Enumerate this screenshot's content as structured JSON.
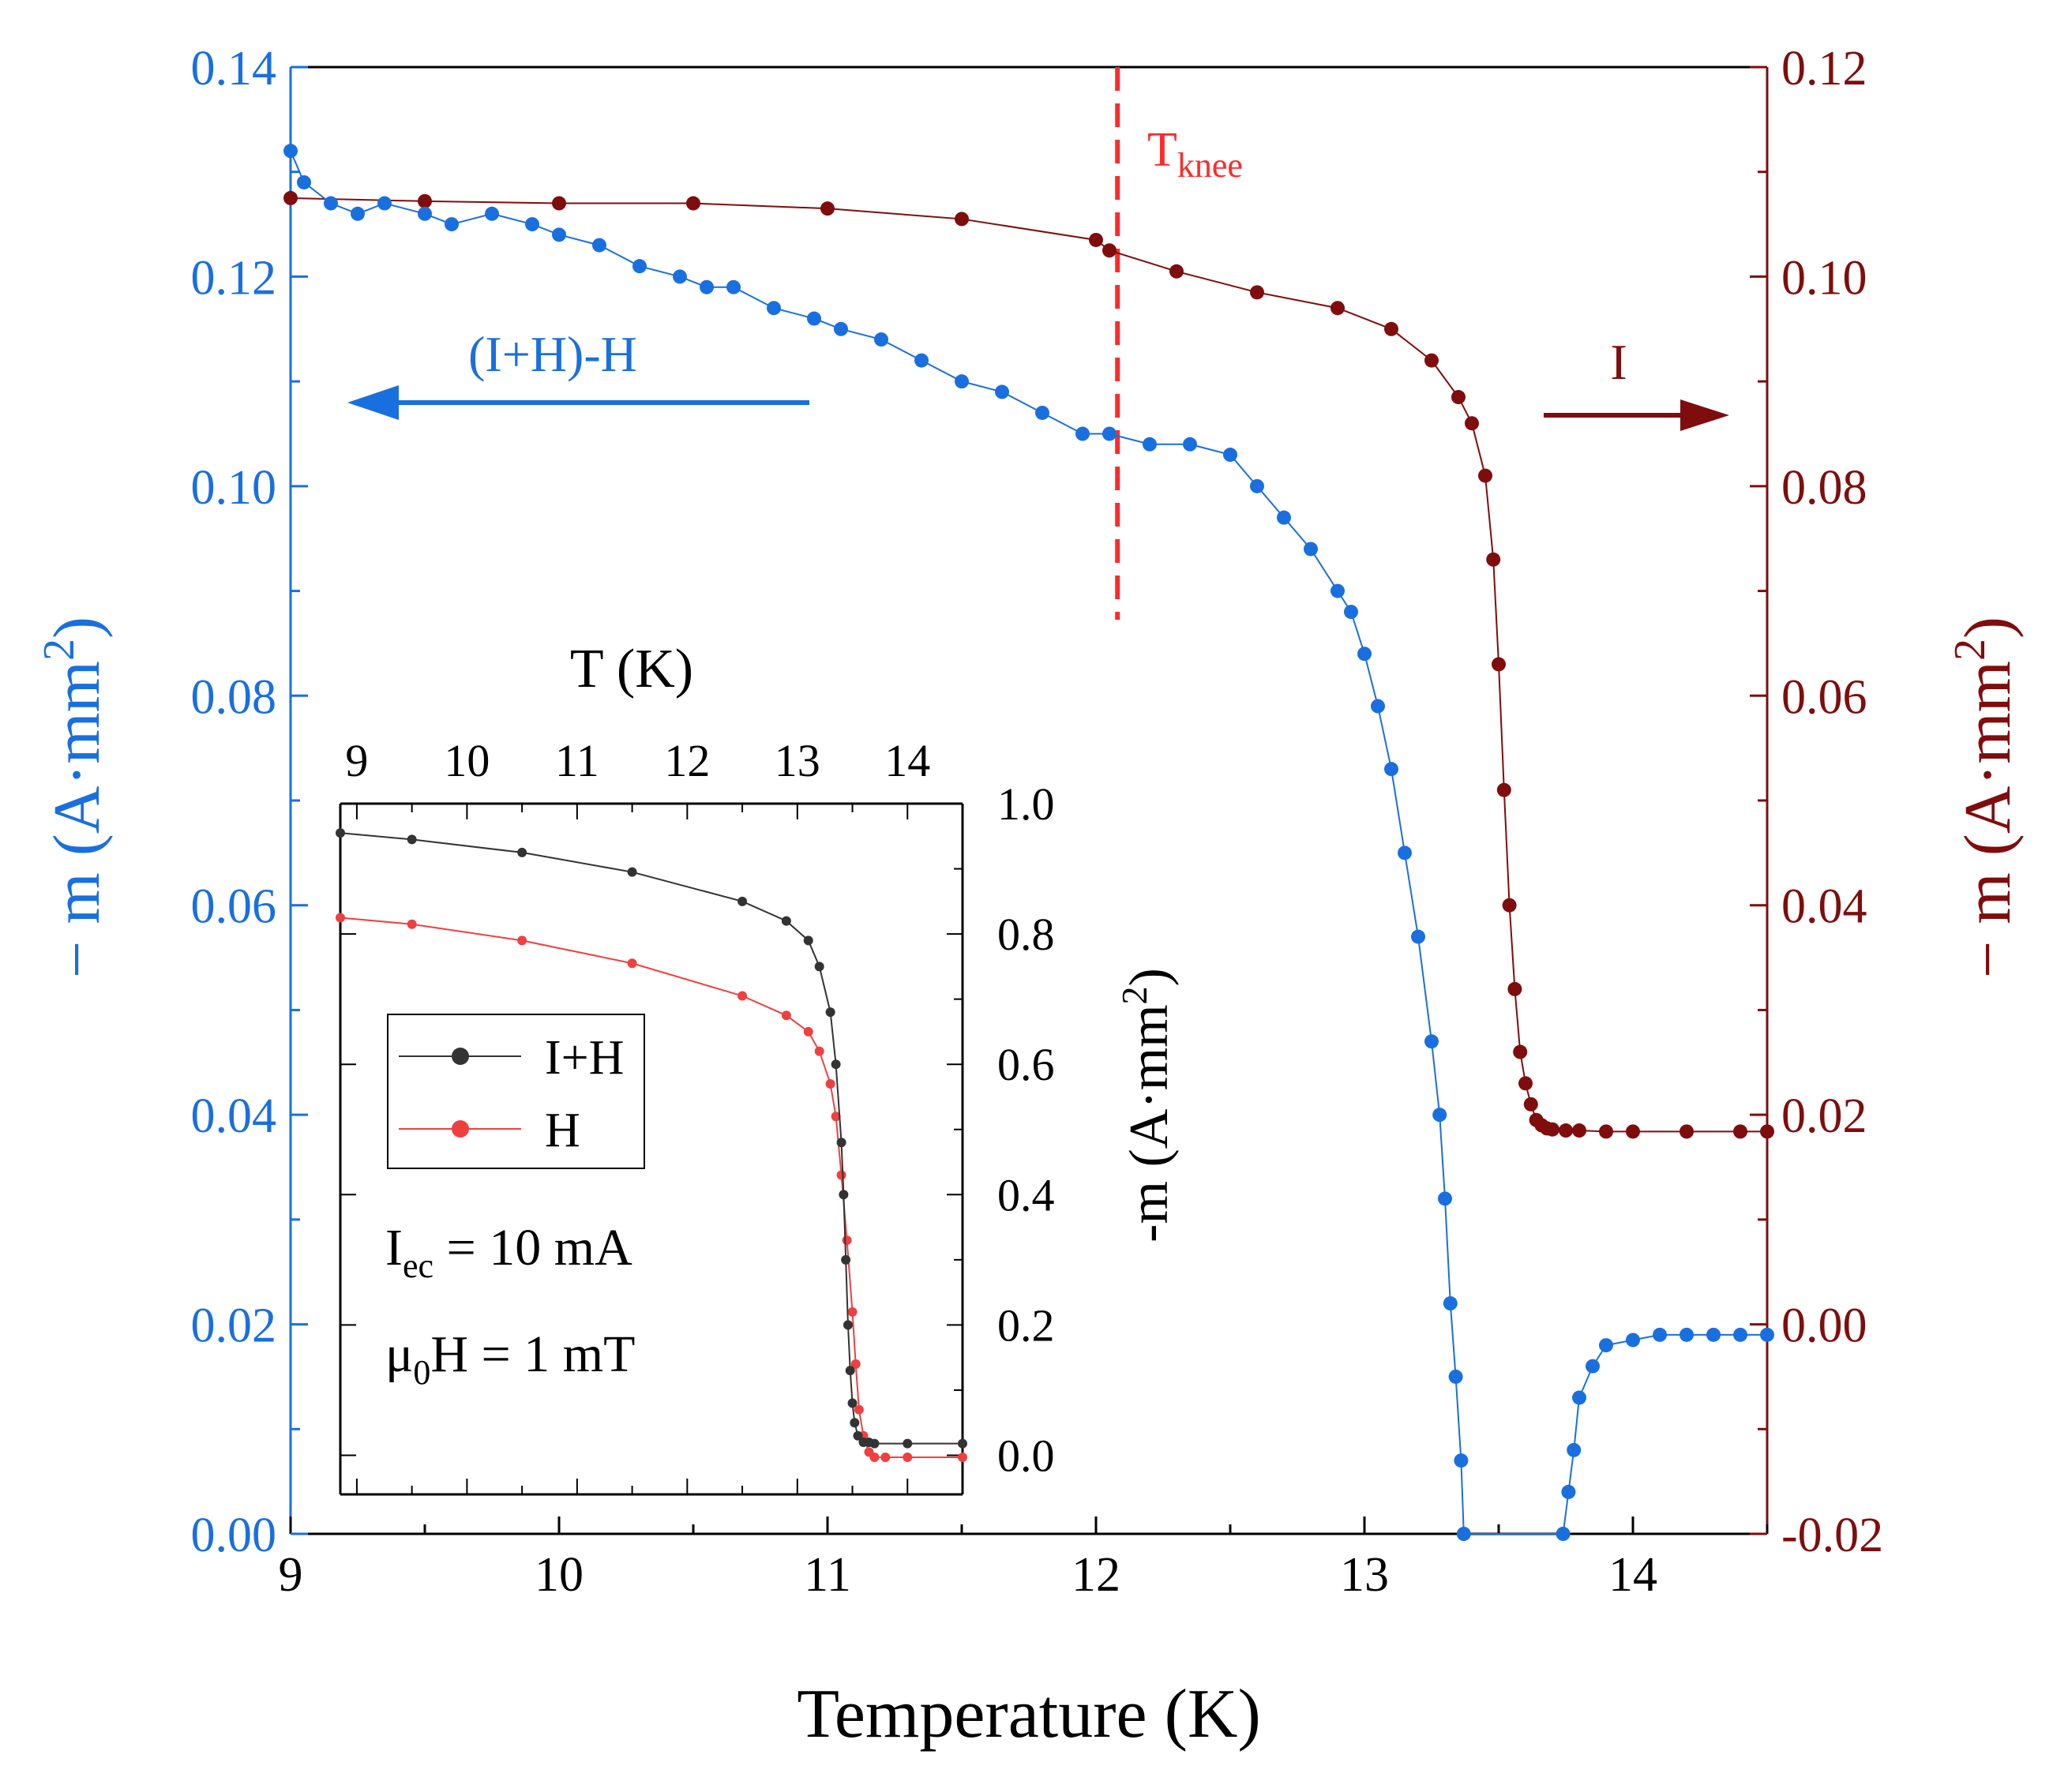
{
  "chart_data": [
    {
      "type": "scatter",
      "name": "main",
      "xlabel": "Temperature (K)",
      "xlim": [
        9,
        14.5
      ],
      "xticks": [
        9,
        10,
        11,
        12,
        13,
        14
      ],
      "ylabel_left": "− m (A·mm",
      "ylabel_left_sup": "2",
      "ylabel_left_close": ")",
      "ylim_left": [
        0,
        0.14
      ],
      "yticks_left": [
        "0.00",
        "0.02",
        "0.04",
        "0.06",
        "0.08",
        "0.10",
        "0.12",
        "0.14"
      ],
      "ylabel_right": "− m (A·mm",
      "ylabel_right_sup": "2",
      "ylabel_right_close": ")",
      "ylim_right": [
        -0.02,
        0.12
      ],
      "yticks_right": [
        "-0.02",
        "0.00",
        "0.02",
        "0.04",
        "0.06",
        "0.08",
        "0.10",
        "0.12"
      ],
      "series": [
        {
          "name": "(I+H)-H",
          "axis": "left",
          "color": "#1a6fdf",
          "x": [
            9.0,
            9.05,
            9.15,
            9.25,
            9.35,
            9.5,
            9.6,
            9.75,
            9.9,
            10.0,
            10.15,
            10.3,
            10.45,
            10.55,
            10.65,
            10.8,
            10.95,
            11.05,
            11.2,
            11.35,
            11.5,
            11.65,
            11.8,
            11.95,
            12.05,
            12.2,
            12.35,
            12.5,
            12.6,
            12.7,
            12.8,
            12.9,
            12.95,
            13.0,
            13.05,
            13.1,
            13.15,
            13.2,
            13.25,
            13.28,
            13.3,
            13.32,
            13.34,
            13.36,
            13.37,
            13.74,
            13.76,
            13.78,
            13.8,
            13.85,
            13.9,
            14.0,
            14.1,
            14.2,
            14.3,
            14.4,
            14.5
          ],
          "y": [
            0.132,
            0.129,
            0.127,
            0.126,
            0.127,
            0.126,
            0.125,
            0.126,
            0.125,
            0.124,
            0.123,
            0.121,
            0.12,
            0.119,
            0.119,
            0.117,
            0.116,
            0.115,
            0.114,
            0.112,
            0.11,
            0.109,
            0.107,
            0.105,
            0.105,
            0.104,
            0.104,
            0.103,
            0.1,
            0.097,
            0.094,
            0.09,
            0.088,
            0.084,
            0.079,
            0.073,
            0.065,
            0.057,
            0.047,
            0.04,
            0.032,
            0.022,
            0.015,
            0.007,
            0.0,
            0.0,
            0.004,
            0.008,
            0.013,
            0.016,
            0.018,
            0.0185,
            0.019,
            0.019,
            0.019,
            0.019,
            0.019
          ]
        },
        {
          "name": "I",
          "axis": "right",
          "color": "#7f0d0d",
          "x": [
            9.0,
            9.5,
            10.0,
            10.5,
            11.0,
            11.5,
            12.0,
            12.05,
            12.3,
            12.6,
            12.9,
            13.1,
            13.25,
            13.35,
            13.4,
            13.45,
            13.48,
            13.5,
            13.52,
            13.54,
            13.56,
            13.58,
            13.6,
            13.62,
            13.64,
            13.66,
            13.68,
            13.7,
            13.75,
            13.8,
            13.9,
            14.0,
            14.2,
            14.4,
            14.5
          ],
          "y": [
            0.1075,
            0.1072,
            0.107,
            0.107,
            0.1065,
            0.1055,
            0.1035,
            0.1025,
            0.1005,
            0.0985,
            0.097,
            0.095,
            0.092,
            0.0885,
            0.086,
            0.081,
            0.073,
            0.063,
            0.051,
            0.04,
            0.032,
            0.026,
            0.023,
            0.021,
            0.0195,
            0.019,
            0.0187,
            0.0186,
            0.0185,
            0.0185,
            0.0184,
            0.0184,
            0.0184,
            0.0184,
            0.0184
          ]
        }
      ],
      "annotations": {
        "tknee": {
          "x": 12.08,
          "label": "T",
          "sub": "knee",
          "color": "#ff2a2a"
        },
        "left_arrow_label": "(I+H)-H",
        "right_arrow_label": "I"
      }
    },
    {
      "type": "scatter",
      "name": "inset",
      "xlabel": "T (K)",
      "xlim": [
        8.85,
        14.5
      ],
      "xticks": [
        9,
        10,
        11,
        12,
        13,
        14
      ],
      "ylabel": "-m (A·mm",
      "ylabel_sup": "2",
      "ylabel_close": ")",
      "ylim": [
        -0.06,
        1.0
      ],
      "yticks": [
        "0.0",
        "0.2",
        "0.4",
        "0.6",
        "0.8",
        "1.0"
      ],
      "series": [
        {
          "name": "I+H",
          "color": "#333333",
          "x": [
            8.85,
            9.5,
            10.5,
            11.5,
            12.5,
            12.9,
            13.1,
            13.2,
            13.3,
            13.35,
            13.4,
            13.42,
            13.44,
            13.46,
            13.48,
            13.5,
            13.52,
            13.55,
            13.6,
            13.65,
            13.7,
            14.0,
            14.5
          ],
          "y": [
            0.955,
            0.945,
            0.925,
            0.895,
            0.85,
            0.82,
            0.79,
            0.75,
            0.68,
            0.6,
            0.48,
            0.4,
            0.3,
            0.2,
            0.13,
            0.08,
            0.05,
            0.03,
            0.02,
            0.02,
            0.018,
            0.018,
            0.018
          ]
        },
        {
          "name": "H",
          "color": "#ef4040",
          "x": [
            8.85,
            9.5,
            10.5,
            11.5,
            12.5,
            12.9,
            13.1,
            13.2,
            13.3,
            13.35,
            13.4,
            13.45,
            13.5,
            13.53,
            13.56,
            13.6,
            13.65,
            13.7,
            13.8,
            14.0,
            14.5
          ],
          "y": [
            0.825,
            0.815,
            0.79,
            0.755,
            0.705,
            0.675,
            0.65,
            0.62,
            0.57,
            0.52,
            0.43,
            0.33,
            0.22,
            0.14,
            0.07,
            0.03,
            0.005,
            -0.003,
            -0.003,
            -0.003,
            -0.003
          ]
        }
      ],
      "legend": [
        "I+H",
        "H"
      ],
      "annotations": {
        "current_label": "I",
        "current_sub": "ec",
        "current_value": " = 10 mA",
        "field_label": "μ",
        "field_sub": "0",
        "field_value": "H = 1 mT"
      }
    }
  ]
}
